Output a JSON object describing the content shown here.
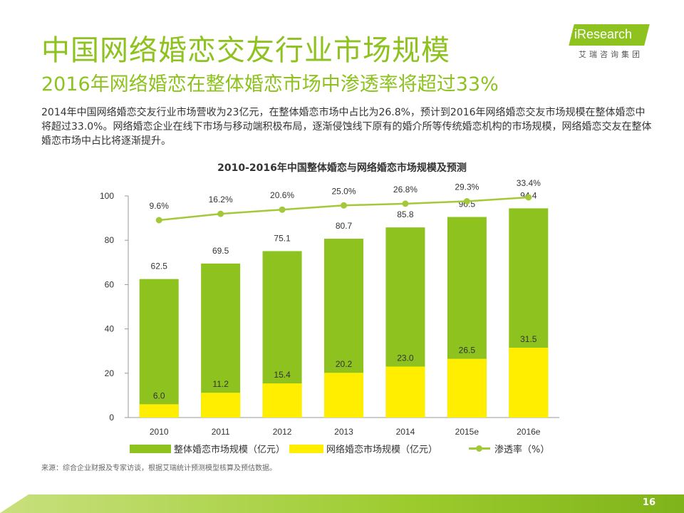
{
  "header": {
    "title": "中国网络婚恋交友行业市场规模",
    "subtitle": "2016年网络婚恋在整体婚恋市场中渗透率将超过33%",
    "logo_text": "iResearch",
    "logo_sub": "艾瑞咨询集团"
  },
  "summary": "2014年中国网络婚恋交友行业市场营收为23亿元，在整体婚恋市场中占比为26.8%，预计到2016年网络婚恋交友市场规模在整体婚恋中将超过33.0%。网络婚恋企业在线下市场与移动端积极布局，逐渐侵蚀线下原有的婚介所等传统婚恋机构的市场规模，网络婚恋交友在整体婚恋市场中占比将逐渐提升。",
  "chart_data": {
    "type": "bar",
    "title": "2010-2016年中国整体婚恋与网络婚恋市场规模及预测",
    "categories": [
      "2010",
      "2011",
      "2012",
      "2013",
      "2014",
      "2015e",
      "2016e"
    ],
    "series": [
      {
        "name": "整体婚恋市场规模（亿元）",
        "kind": "bar",
        "color": "#8dc21f",
        "values": [
          62.5,
          69.5,
          75.1,
          80.7,
          85.8,
          90.5,
          94.4
        ],
        "labels": [
          "62.5",
          "69.5",
          "75.1",
          "80.7",
          "85.8",
          "90.5",
          "94.4"
        ]
      },
      {
        "name": "网络婚恋市场规模（亿元）",
        "kind": "bar",
        "color": "#ffee00",
        "values": [
          6.0,
          11.2,
          15.4,
          20.2,
          23.0,
          26.5,
          31.5
        ],
        "labels": [
          "6.0",
          "11.2",
          "15.4",
          "20.2",
          "23.0",
          "26.5",
          "31.5"
        ]
      },
      {
        "name": "渗透率（%）",
        "kind": "line",
        "color": "#a3c93a",
        "values": [
          9.6,
          16.2,
          20.6,
          25.0,
          26.8,
          29.3,
          33.4
        ],
        "labels": [
          "9.6%",
          "16.2%",
          "20.6%",
          "25.0%",
          "26.8%",
          "29.3%",
          "33.4%"
        ]
      }
    ],
    "y_ticks": [
      "0",
      "20",
      "40",
      "60",
      "80",
      "100"
    ],
    "ylim": [
      0,
      100
    ],
    "legend_position": "bottom",
    "grid": false
  },
  "source": "来源：综合企业财报及专家访谈，根据艾瑞统计预测模型核算及预估数据。",
  "page_number": "16"
}
